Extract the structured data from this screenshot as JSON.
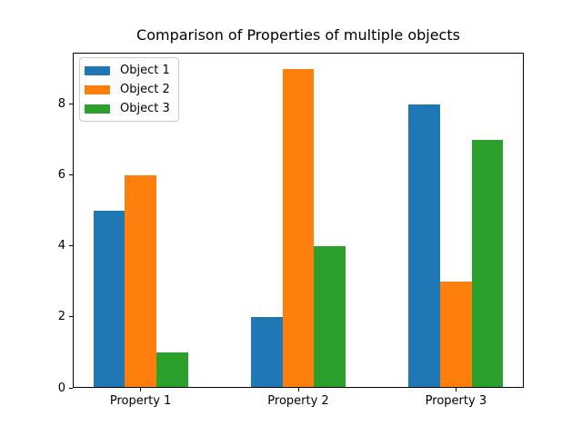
{
  "figure": {
    "background": "#ffffff"
  },
  "chart_data": {
    "type": "bar",
    "title": "Comparison of Properties of multiple objects",
    "xlabel": "",
    "ylabel": "",
    "categories": [
      "Property 1",
      "Property 2",
      "Property 3"
    ],
    "series": [
      {
        "name": "Object 1",
        "color": "#1f77b4",
        "values": [
          5,
          2,
          8
        ]
      },
      {
        "name": "Object 2",
        "color": "#ff7f0e",
        "values": [
          6,
          9,
          3
        ]
      },
      {
        "name": "Object 3",
        "color": "#2ca02c",
        "values": [
          1,
          4,
          7
        ]
      }
    ],
    "x_positions": [
      0,
      1,
      2
    ],
    "series_offsets": [
      -0.2,
      0,
      0.2
    ],
    "bar_width_units": 0.2,
    "xlim": [
      -0.43,
      2.43
    ],
    "ylim": [
      0,
      9.45
    ],
    "yticks": [
      0,
      2,
      4,
      6,
      8
    ],
    "grid": false,
    "legend_position": "upper-left",
    "axis_color": "#000000",
    "text_color": "#000000"
  }
}
